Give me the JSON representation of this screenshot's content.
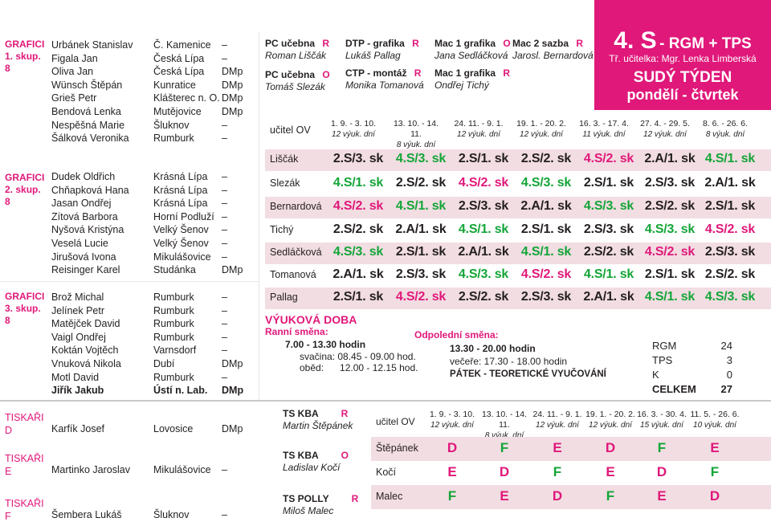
{
  "groups": [
    {
      "label": "GRAFICI 1. skup. 8",
      "students": [
        {
          "name": "Urbánek Stanislav",
          "city": "Č. Kamenice",
          "dmp": "–"
        },
        {
          "name": "Figala Jan",
          "city": "Česká Lípa",
          "dmp": "–"
        },
        {
          "name": "Oliva Jan",
          "city": "Česká Lípa",
          "dmp": "DMp"
        },
        {
          "name": "Wünsch Štěpán",
          "city": "Kunratice",
          "dmp": "DMp"
        },
        {
          "name": "Grieš Petr",
          "city": "Klášterec n. O.",
          "dmp": "DMp"
        },
        {
          "name": "Bendová Lenka",
          "city": "Mutějovice",
          "dmp": "DMp"
        },
        {
          "name": "Nespěšná Marie",
          "city": "Šluknov",
          "dmp": "–"
        },
        {
          "name": "Šálková Veronika",
          "city": "Rumburk",
          "dmp": "–"
        }
      ]
    },
    {
      "label": "GRAFICI 2. skup. 8",
      "students": [
        {
          "name": "Dudek Oldřich",
          "city": "Krásná Lípa",
          "dmp": "–"
        },
        {
          "name": "Chňapková Hana",
          "city": "Krásná Lípa",
          "dmp": "–"
        },
        {
          "name": "Jasan Ondřej",
          "city": "Krásná Lípa",
          "dmp": "–"
        },
        {
          "name": "Zítová Barbora",
          "city": "Horní Podluží",
          "dmp": "–"
        },
        {
          "name": "Nyšová Kristýna",
          "city": "Velký Šenov",
          "dmp": "–"
        },
        {
          "name": "Veselá Lucie",
          "city": "Velký Šenov",
          "dmp": "–"
        },
        {
          "name": "Jirušová Ivona",
          "city": "Mikulášovice",
          "dmp": "–"
        },
        {
          "name": "Reisinger Karel",
          "city": "Studánka",
          "dmp": "DMp"
        }
      ]
    },
    {
      "label": "GRAFICI 3. skup. 8",
      "students": [
        {
          "name": "Brož Michal",
          "city": "Rumburk",
          "dmp": "–"
        },
        {
          "name": "Jelínek Petr",
          "city": "Rumburk",
          "dmp": "–"
        },
        {
          "name": "Matějček David",
          "city": "Rumburk",
          "dmp": "–"
        },
        {
          "name": "Vaigl Ondřej",
          "city": "Rumburk",
          "dmp": "–"
        },
        {
          "name": "Koktán Vojtěch",
          "city": "Varnsdorf",
          "dmp": "–"
        },
        {
          "name": "Vnuková Nikola",
          "city": "Dubí",
          "dmp": "DMp"
        },
        {
          "name": "Motl David",
          "city": "Rumburk",
          "dmp": "–"
        },
        {
          "name": "Jiřík Jakub",
          "city": "Ústí n. Lab.",
          "dmp": "DMp"
        }
      ]
    }
  ],
  "tiskari": [
    {
      "label": "TISKAŘI D",
      "name": "Karfík Josef",
      "city": "Lovosice",
      "dmp": "DMp"
    },
    {
      "label": "TISKAŘI E",
      "name": "Martinko Jaroslav",
      "city": "Mikulášovice",
      "dmp": "–"
    },
    {
      "label": "TISKAŘI F",
      "name": "Šembera Lukáš",
      "city": "Šluknov",
      "dmp": "–"
    }
  ],
  "rooms": [
    {
      "title": "PC učebna",
      "flag": "R",
      "teacher": "Roman Liščák"
    },
    {
      "title": "PC učebna",
      "flag": "O",
      "teacher": "Tomáš Slezák"
    },
    {
      "title": "DTP - grafika",
      "flag": "R",
      "teacher": "Lukáš Pallag"
    },
    {
      "title": "CTP - montáž",
      "flag": "R",
      "teacher": "Monika Tomanová"
    },
    {
      "title": "Mac 1 grafika",
      "flag": "O",
      "teacher": "Jana Sedláčková"
    },
    {
      "title": "Mac 1 grafika",
      "flag": "R",
      "teacher": "Ondřej Tichý"
    },
    {
      "title": "Mac 2 sazba",
      "flag": "R",
      "teacher": "Jarosl. Bernardová"
    }
  ],
  "grade": {
    "title": "4. S",
    "subtitle": "- RGM + TPS",
    "teacher_label": "Tř. učitelka: Mgr. Lenka Limberská",
    "week": "SUDÝ TÝDEN",
    "days": "pondělí - čtvrtek"
  },
  "schedule": {
    "teacher_header": "učitel OV",
    "periods": [
      {
        "range": "1. 9. - 3. 10.",
        "days": "12 výuk. dní"
      },
      {
        "range": "13. 10. - 14. 11.",
        "days": "8 výuk. dní"
      },
      {
        "range": "24. 11. - 9. 1.",
        "days": "12 výuk. dní"
      },
      {
        "range": "19. 1. - 20. 2.",
        "days": "12 výuk. dní"
      },
      {
        "range": "16. 3. - 17. 4.",
        "days": "11 výuk. dní"
      },
      {
        "range": "27. 4. - 29. 5.",
        "days": "12 výuk. dní"
      },
      {
        "range": "8. 6. - 26. 6.",
        "days": "8 výuk. dní"
      }
    ],
    "rows": [
      {
        "teacher": "Liščák",
        "cells": [
          "2.S/3. sk",
          "4.S/3. sk",
          "2.S/1. sk",
          "2.S/2. sk",
          "4.S/2. sk",
          "2.A/1. sk",
          "4.S/1. sk"
        ]
      },
      {
        "teacher": "Slezák",
        "cells": [
          "4.S/1. sk",
          "2.S/2. sk",
          "4.S/2. sk",
          "4.S/3. sk",
          "2.S/1. sk",
          "2.S/3. sk",
          "2.A/1. sk"
        ]
      },
      {
        "teacher": "Bernardová",
        "cells": [
          "4.S/2. sk",
          "4.S/1. sk",
          "2.S/3. sk",
          "2.A/1. sk",
          "4.S/3. sk",
          "2.S/2. sk",
          "2.S/1. sk"
        ]
      },
      {
        "teacher": "Tichý",
        "cells": [
          "2.S/2. sk",
          "2.A/1. sk",
          "4.S/1. sk",
          "2.S/1. sk",
          "2.S/3. sk",
          "4.S/3. sk",
          "4.S/2. sk"
        ]
      },
      {
        "teacher": "Sedláčková",
        "cells": [
          "4.S/3. sk",
          "2.S/1. sk",
          "2.A/1. sk",
          "4.S/1. sk",
          "2.S/2. sk",
          "4.S/2. sk",
          "2.S/3. sk"
        ]
      },
      {
        "teacher": "Tomanová",
        "cells": [
          "2.A/1. sk",
          "2.S/3. sk",
          "4.S/3. sk",
          "4.S/2. sk",
          "4.S/1. sk",
          "2.S/1. sk",
          "2.S/2. sk"
        ]
      },
      {
        "teacher": "Pallag",
        "cells": [
          "2.S/1. sk",
          "4.S/2. sk",
          "2.S/2. sk",
          "2.S/3. sk",
          "2.A/1. sk",
          "4.S/1. sk",
          "4.S/3. sk"
        ]
      }
    ]
  },
  "hours": {
    "title": "VÝUKOVÁ DOBA",
    "morning_label": "Ranní směna:",
    "morning_time": "7.00 - 13.30 hodin",
    "snack": "svačina: 08.45 - 09.00 hod.",
    "lunch": "oběd:      12.00 - 12.15 hod.",
    "afternoon_label": "Odpolední směna:",
    "afternoon_time": "13.30 - 20.00 hodin",
    "dinner": "večeře: 17.30 - 18.00 hodin",
    "friday": "PÁTEK - TEORETICKÉ VYUČOVÁNÍ"
  },
  "stats": [
    {
      "label": "RGM",
      "value": "24"
    },
    {
      "label": "TPS",
      "value": "3"
    },
    {
      "label": "K",
      "value": "0"
    },
    {
      "label": "CELKEM",
      "value": "27"
    }
  ],
  "ts_rooms": [
    {
      "title": "TS KBA",
      "flag": "R",
      "teacher": "Martin Štěpánek"
    },
    {
      "title": "TS KBA",
      "flag": "O",
      "teacher": "Ladislav Kočí"
    },
    {
      "title": "TS POLLY",
      "flag": "R",
      "teacher": "Miloš Malec"
    }
  ],
  "bottom_schedule": {
    "teacher_header": "učitel OV",
    "periods": [
      {
        "range": "1. 9. - 3. 10.",
        "days": "12 výuk. dní"
      },
      {
        "range": "13. 10. - 14. 11.",
        "days": "8 výuk. dní"
      },
      {
        "range": "24. 11. - 9. 1.",
        "days": "12 výuk. dní"
      },
      {
        "range": "19. 1. - 20. 2.",
        "days": "12 výuk. dní"
      },
      {
        "range": "16. 3. - 30. 4.",
        "days": "15 výuk. dní"
      },
      {
        "range": "11. 5. - 26. 6.",
        "days": "10 výuk. dní"
      }
    ],
    "rows": [
      {
        "teacher": "Štěpánek",
        "cells": [
          "D",
          "F",
          "E",
          "D",
          "F",
          "E"
        ]
      },
      {
        "teacher": "Kočí",
        "cells": [
          "E",
          "D",
          "F",
          "E",
          "D",
          "F"
        ]
      },
      {
        "teacher": "Malec",
        "cells": [
          "F",
          "E",
          "D",
          "F",
          "E",
          "D"
        ]
      }
    ]
  },
  "colors": {
    "magenta": "#e0187a",
    "green": "#13a538",
    "blue": "#1c5fae",
    "pink_row": "#f2dde2"
  }
}
